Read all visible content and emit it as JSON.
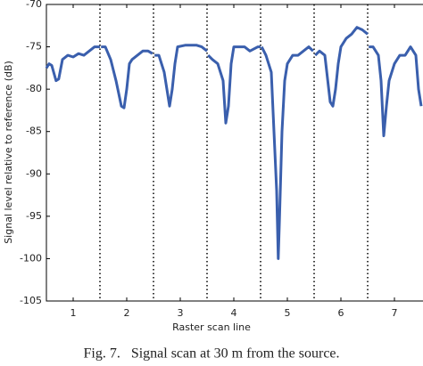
{
  "chart_data": {
    "type": "line",
    "xlabel": "Raster scan line",
    "ylabel": "Signal level relative to reference (dB)",
    "caption": "Fig. 7.   Signal scan at 30 m from the source.",
    "x": [
      0.5,
      0.55,
      0.6,
      0.68,
      0.73,
      0.8,
      0.9,
      1.0,
      1.1,
      1.2,
      1.3,
      1.4,
      1.5,
      1.51,
      1.52,
      1.6,
      1.7,
      1.8,
      1.9,
      1.95,
      2.0,
      2.05,
      2.1,
      2.2,
      2.3,
      2.4,
      2.48,
      2.5,
      2.52,
      2.6,
      2.7,
      2.75,
      2.8,
      2.85,
      2.9,
      2.95,
      3.1,
      3.3,
      3.4,
      3.5,
      3.51,
      3.52,
      3.6,
      3.7,
      3.8,
      3.85,
      3.9,
      3.95,
      4.0,
      4.2,
      4.3,
      4.45,
      4.5,
      4.51,
      4.52,
      4.6,
      4.7,
      4.75,
      4.8,
      4.83,
      4.85,
      4.9,
      4.95,
      5.0,
      5.1,
      5.2,
      5.3,
      5.4,
      5.48,
      5.5,
      5.52,
      5.6,
      5.7,
      5.8,
      5.85,
      5.9,
      5.95,
      6.0,
      6.1,
      6.2,
      6.3,
      6.4,
      6.5,
      6.51,
      6.52,
      6.6,
      6.7,
      6.75,
      6.8,
      6.85,
      6.9,
      7.0,
      7.1,
      7.2,
      7.3,
      7.4,
      7.45,
      7.5
    ],
    "series": [
      {
        "color": "#3a5fad",
        "values": [
          -77.5,
          -77,
          -77.2,
          -79,
          -78.8,
          -76.5,
          -76,
          -76.2,
          -75.8,
          -76,
          -75.5,
          -75,
          -75,
          null,
          -75,
          -75,
          -76.5,
          -79,
          -82,
          -82.2,
          -80,
          -77,
          -76.5,
          -76,
          -75.5,
          -75.5,
          -75.8,
          null,
          -76,
          -76,
          -78,
          -80,
          -82,
          -80,
          -77,
          -75,
          -74.8,
          -74.8,
          -75,
          -75.5,
          null,
          -76,
          -76.5,
          -77,
          -79,
          -84,
          -82,
          -77,
          -75,
          -75,
          -75.5,
          -75,
          -75,
          null,
          -75,
          -76,
          -78,
          -85,
          -92,
          -100,
          -96,
          -85,
          -79,
          -77,
          -76,
          -76,
          -75.5,
          -75,
          -75.5,
          null,
          -76,
          -75.5,
          -76,
          -81.5,
          -82,
          -80,
          -77,
          -75,
          -74,
          -73.5,
          -72.7,
          -73,
          -73.5,
          null,
          -75,
          -75,
          -76,
          -79,
          -85.5,
          -82,
          -79,
          -77,
          -76,
          -76,
          -75,
          -76,
          -80,
          -82
        ]
      }
    ],
    "vlines": [
      1.5,
      2.5,
      3.5,
      4.5,
      5.5,
      6.5
    ],
    "xlim": [
      0.5,
      7.5
    ],
    "xticks": [
      1,
      2,
      3,
      4,
      5,
      6,
      7
    ],
    "ylim": [
      -105,
      -70
    ],
    "yticks": [
      -105,
      -100,
      -95,
      -90,
      -85,
      -80,
      -75,
      -70
    ]
  }
}
